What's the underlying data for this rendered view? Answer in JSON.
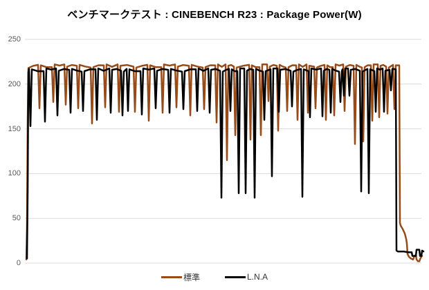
{
  "chart_data": {
    "type": "line",
    "title": "ベンチマークテスト : CINEBENCH R23 : Package Power(W)",
    "xlabel": "",
    "ylabel": "",
    "xticks": [],
    "ylim": [
      0,
      250
    ],
    "yticks": [
      0,
      50,
      100,
      150,
      200,
      250
    ],
    "grid": "horizontal",
    "legend_position": "bottom-center",
    "axis_label_color": "#595959",
    "gridline_color": "#d9d9d9",
    "x_note": "time samples (unlabeled axis), t = 0..574",
    "series": [
      {
        "key": "standard",
        "name": "標準",
        "color": "#964b19",
        "baseline": 220,
        "start": [
          [
            0,
            4
          ],
          [
            1,
            40
          ],
          [
            2,
            160
          ],
          [
            3,
            218
          ]
        ],
        "spikes": [
          [
            19,
            173
          ],
          [
            39,
            180
          ],
          [
            57,
            177
          ],
          [
            75,
            173
          ],
          [
            95,
            156
          ],
          [
            114,
            174
          ],
          [
            134,
            169
          ],
          [
            157,
            169
          ],
          [
            177,
            159
          ],
          [
            197,
            168
          ],
          [
            217,
            174
          ],
          [
            237,
            165
          ],
          [
            257,
            172
          ],
          [
            275,
            157
          ],
          [
            290,
            115
          ],
          [
            302,
            143
          ],
          [
            324,
            138
          ],
          [
            339,
            143
          ],
          [
            350,
            181
          ],
          [
            364,
            148
          ],
          [
            377,
            170
          ],
          [
            392,
            160
          ],
          [
            407,
            168
          ],
          [
            418,
            173
          ],
          [
            433,
            160
          ],
          [
            445,
            165
          ],
          [
            460,
            170
          ],
          [
            475,
            133
          ],
          [
            487,
            136
          ],
          [
            500,
            159
          ],
          [
            510,
            163
          ],
          [
            522,
            167
          ],
          [
            532,
            172
          ]
        ],
        "end_t": 539,
        "end": [
          [
            540,
            45
          ],
          [
            541,
            42
          ],
          [
            544,
            38
          ],
          [
            547,
            33
          ],
          [
            549,
            27
          ],
          [
            550,
            22
          ],
          [
            551,
            10
          ],
          [
            553,
            7
          ],
          [
            556,
            5
          ],
          [
            559,
            4
          ],
          [
            561,
            8
          ],
          [
            563,
            9
          ],
          [
            564,
            4
          ],
          [
            566,
            2
          ],
          [
            568,
            2
          ],
          [
            570,
            6
          ],
          [
            572,
            8
          ]
        ]
      },
      {
        "key": "lna",
        "name": "L.N.A",
        "color": "#000000",
        "baseline": 215.5,
        "start": [
          [
            1,
            5
          ],
          [
            2,
            80
          ],
          [
            3,
            213
          ]
        ],
        "spikes": [
          [
            6,
            153
          ],
          [
            27,
            158
          ],
          [
            45,
            165
          ],
          [
            64,
            168
          ],
          [
            82,
            170
          ],
          [
            102,
            160
          ],
          [
            122,
            168
          ],
          [
            139,
            165
          ],
          [
            147,
            170
          ],
          [
            167,
            166
          ],
          [
            187,
            173
          ],
          [
            207,
            168
          ],
          [
            227,
            172
          ],
          [
            247,
            170
          ],
          [
            265,
            168
          ],
          [
            282,
            73
          ],
          [
            295,
            170
          ],
          [
            307,
            78
          ],
          [
            317,
            78
          ],
          [
            330,
            73
          ],
          [
            344,
            160
          ],
          [
            355,
            97
          ],
          [
            365,
            169
          ],
          [
            384,
            175
          ],
          [
            399,
            74
          ],
          [
            410,
            163
          ],
          [
            428,
            164
          ],
          [
            440,
            168
          ],
          [
            454,
            180
          ],
          [
            459,
            187
          ],
          [
            467,
            187
          ],
          [
            484,
            80
          ],
          [
            495,
            78
          ],
          [
            505,
            169
          ],
          [
            517,
            169
          ],
          [
            527,
            193
          ]
        ],
        "end_t": 534,
        "end": [
          [
            535,
            14
          ],
          [
            537,
            13
          ],
          [
            545,
            13
          ],
          [
            552,
            12
          ],
          [
            557,
            12
          ],
          [
            558,
            8
          ],
          [
            563,
            8
          ],
          [
            564,
            15
          ],
          [
            568,
            15
          ],
          [
            569,
            8
          ],
          [
            571,
            8
          ],
          [
            572,
            14
          ],
          [
            574,
            13
          ]
        ]
      }
    ]
  }
}
